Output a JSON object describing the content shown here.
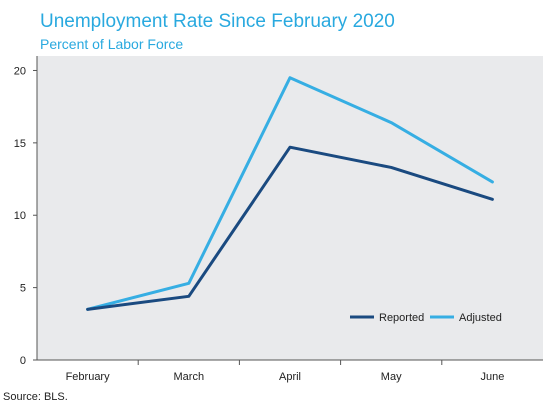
{
  "chart_data": {
    "type": "line",
    "title": "Unemployment Rate Since February 2020",
    "subtitle": "Percent of Labor Force",
    "categories": [
      "February",
      "March",
      "April",
      "May",
      "June"
    ],
    "series": [
      {
        "name": "Reported",
        "values": [
          3.5,
          4.4,
          14.7,
          13.3,
          11.1
        ],
        "color": "#1a4a80"
      },
      {
        "name": "Adjusted",
        "values": [
          3.5,
          5.3,
          19.5,
          16.4,
          12.3
        ],
        "color": "#36aee3"
      }
    ],
    "ylim": [
      0,
      21
    ],
    "yticks": [
      0,
      5,
      10,
      15,
      20
    ],
    "grid": false,
    "legend_position": "bottom-right",
    "plot_background": "#e9eaec",
    "source": "Source: BLS."
  }
}
